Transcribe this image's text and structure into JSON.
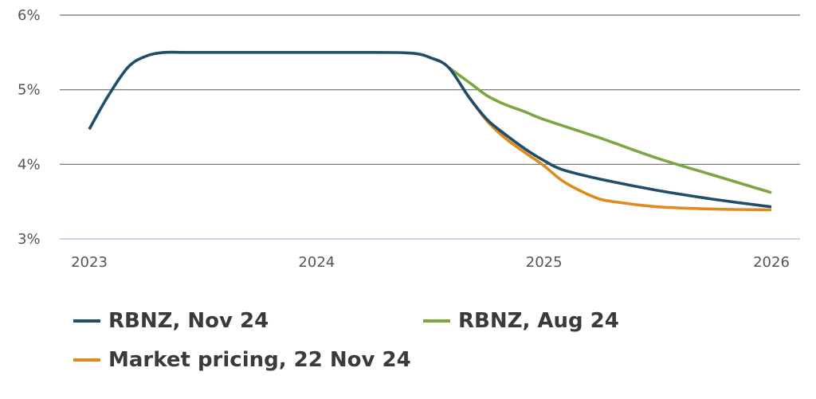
{
  "chart_data": {
    "type": "line",
    "title": "",
    "xlabel": "",
    "ylabel": "",
    "x_ticks": [
      "2023",
      "2024",
      "2025",
      "2026"
    ],
    "y_ticks": [
      "6%",
      "5%",
      "4%",
      "3%"
    ],
    "xlim": [
      2023,
      2026
    ],
    "ylim": [
      3,
      6
    ],
    "grid": "horizontal",
    "legend_position": "bottom",
    "series": [
      {
        "name": "RBNZ, Nov 24",
        "color": "#1f4e6b",
        "x": [
          2023.0,
          2023.08,
          2023.17,
          2023.25,
          2023.33,
          2023.42,
          2023.5,
          2023.75,
          2024.0,
          2024.25,
          2024.42,
          2024.5,
          2024.58,
          2024.67,
          2024.75,
          2024.83,
          2024.92,
          2025.0,
          2025.08,
          2025.25,
          2025.5,
          2025.75,
          2026.0
        ],
        "y": [
          4.47,
          4.9,
          5.3,
          5.45,
          5.5,
          5.5,
          5.5,
          5.5,
          5.5,
          5.5,
          5.49,
          5.43,
          5.3,
          4.9,
          4.6,
          4.4,
          4.2,
          4.05,
          3.93,
          3.8,
          3.65,
          3.53,
          3.43
        ]
      },
      {
        "name": "RBNZ, Aug 24",
        "color": "#7aa83f",
        "x": [
          2024.58,
          2024.67,
          2024.75,
          2024.83,
          2024.92,
          2025.0,
          2025.25,
          2025.5,
          2025.75,
          2026.0
        ],
        "y": [
          5.3,
          5.1,
          4.92,
          4.8,
          4.7,
          4.6,
          4.35,
          4.08,
          3.85,
          3.62
        ]
      },
      {
        "name": "Market pricing, 22 Nov 24",
        "color": "#e08a1e",
        "x": [
          2024.67,
          2024.75,
          2024.83,
          2024.92,
          2025.0,
          2025.08,
          2025.17,
          2025.25,
          2025.33,
          2025.5,
          2025.75,
          2026.0
        ],
        "y": [
          4.9,
          4.58,
          4.35,
          4.15,
          3.98,
          3.78,
          3.63,
          3.53,
          3.49,
          3.43,
          3.4,
          3.39
        ]
      }
    ]
  }
}
